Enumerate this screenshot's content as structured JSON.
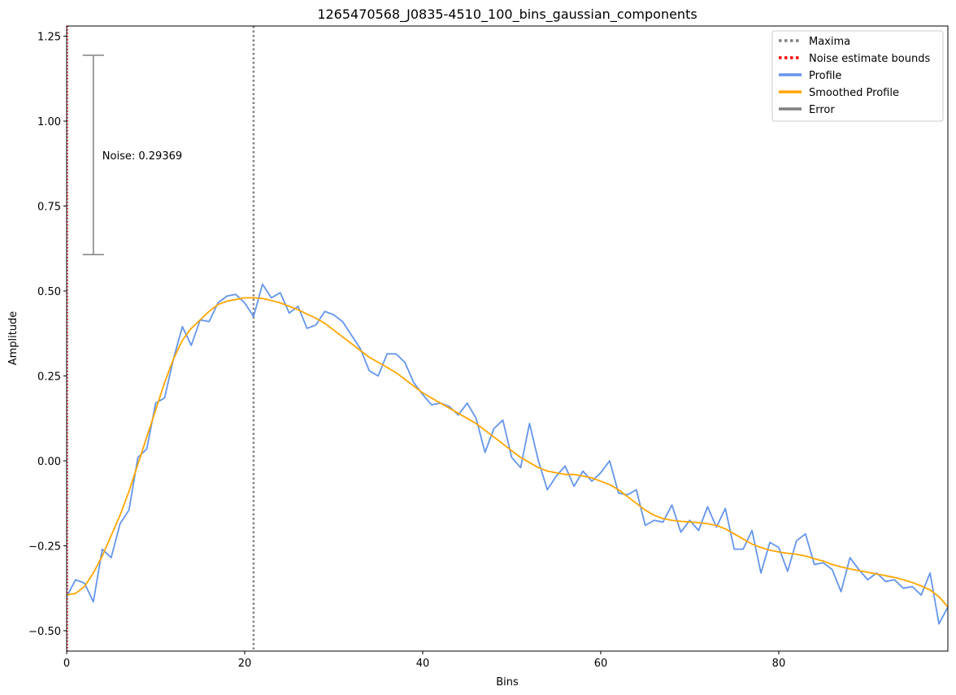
{
  "chart_data": {
    "type": "line",
    "title": "1265470568_J0835-4510_100_bins_gaussian_components",
    "xlabel": "Bins",
    "ylabel": "Amplitude",
    "xlim": [
      0,
      99
    ],
    "ylim": [
      -0.56,
      1.28
    ],
    "xticks": [
      0,
      20,
      40,
      60,
      80
    ],
    "yticks": [
      -0.5,
      -0.25,
      0.0,
      0.25,
      0.5,
      0.75,
      1.0,
      1.25
    ],
    "xtick_labels": [
      "0",
      "20",
      "40",
      "60",
      "80"
    ],
    "ytick_labels": [
      "−0.50",
      "−0.25",
      "0.00",
      "0.25",
      "0.50",
      "0.75",
      "1.00",
      "1.25"
    ],
    "grid": false,
    "legend_position": "top-right",
    "colors": {
      "maxima": "#808080",
      "noise_bounds": "#ff0000",
      "profile": "#6495ed",
      "smoothed": "#ffa500",
      "error": "#808080"
    },
    "legend": [
      {
        "label": "Maxima",
        "style": "dotted",
        "color": "#808080"
      },
      {
        "label": "Noise estimate bounds",
        "style": "dotted",
        "color": "#ff0000"
      },
      {
        "label": "Profile",
        "style": "solid",
        "color": "#6495ed"
      },
      {
        "label": "Smoothed Profile",
        "style": "solid",
        "color": "#ffa500"
      },
      {
        "label": "Error",
        "style": "solid",
        "color": "#808080"
      }
    ],
    "maxima_x": [
      21
    ],
    "noise_bounds_x": [
      0
    ],
    "error_bar": {
      "x": 3,
      "y_low": 0.607,
      "y_high": 1.194
    },
    "noise_annotation": {
      "text": "Noise: 0.29369",
      "x": 4,
      "y": 0.9
    },
    "series": [
      {
        "name": "Profile",
        "x": [
          0,
          1,
          2,
          3,
          4,
          5,
          6,
          7,
          8,
          9,
          10,
          11,
          12,
          13,
          14,
          15,
          16,
          17,
          18,
          19,
          20,
          21,
          22,
          23,
          24,
          25,
          26,
          27,
          28,
          29,
          30,
          31,
          32,
          33,
          34,
          35,
          36,
          37,
          38,
          39,
          40,
          41,
          42,
          43,
          44,
          45,
          46,
          47,
          48,
          49,
          50,
          51,
          52,
          53,
          54,
          55,
          56,
          57,
          58,
          59,
          60,
          61,
          62,
          63,
          64,
          65,
          66,
          67,
          68,
          69,
          70,
          71,
          72,
          73,
          74,
          75,
          76,
          77,
          78,
          79,
          80,
          81,
          82,
          83,
          84,
          85,
          86,
          87,
          88,
          89,
          90,
          91,
          92,
          93,
          94,
          95,
          96,
          97,
          98,
          99
        ],
        "values": [
          -0.4,
          -0.35,
          -0.36,
          -0.415,
          -0.26,
          -0.285,
          -0.185,
          -0.145,
          0.01,
          0.035,
          0.17,
          0.185,
          0.3,
          0.395,
          0.34,
          0.415,
          0.41,
          0.465,
          0.485,
          0.49,
          0.465,
          0.425,
          0.52,
          0.48,
          0.495,
          0.435,
          0.455,
          0.39,
          0.4,
          0.44,
          0.43,
          0.41,
          0.37,
          0.33,
          0.265,
          0.25,
          0.315,
          0.315,
          0.29,
          0.23,
          0.195,
          0.165,
          0.17,
          0.16,
          0.135,
          0.17,
          0.125,
          0.025,
          0.095,
          0.12,
          0.01,
          -0.02,
          0.11,
          0.0,
          -0.085,
          -0.045,
          -0.015,
          -0.075,
          -0.03,
          -0.06,
          -0.035,
          0.0,
          -0.095,
          -0.1,
          -0.085,
          -0.19,
          -0.175,
          -0.18,
          -0.13,
          -0.21,
          -0.175,
          -0.205,
          -0.135,
          -0.195,
          -0.14,
          -0.26,
          -0.26,
          -0.205,
          -0.33,
          -0.24,
          -0.255,
          -0.325,
          -0.235,
          -0.215,
          -0.305,
          -0.3,
          -0.32,
          -0.385,
          -0.285,
          -0.32,
          -0.35,
          -0.33,
          -0.355,
          -0.35,
          -0.375,
          -0.37,
          -0.395,
          -0.33,
          -0.48,
          -0.43
        ]
      },
      {
        "name": "Smoothed Profile",
        "x": [
          0,
          1,
          2,
          3,
          4,
          5,
          6,
          7,
          8,
          9,
          10,
          11,
          12,
          13,
          14,
          15,
          16,
          17,
          18,
          19,
          20,
          21,
          22,
          23,
          24,
          25,
          26,
          27,
          28,
          29,
          30,
          31,
          32,
          33,
          34,
          35,
          36,
          37,
          38,
          39,
          40,
          41,
          42,
          43,
          44,
          45,
          46,
          47,
          48,
          49,
          50,
          51,
          52,
          53,
          54,
          55,
          56,
          57,
          58,
          59,
          60,
          61,
          62,
          63,
          64,
          65,
          66,
          67,
          68,
          69,
          70,
          71,
          72,
          73,
          74,
          75,
          76,
          77,
          78,
          79,
          80,
          81,
          82,
          83,
          84,
          85,
          86,
          87,
          88,
          89,
          90,
          91,
          92,
          93,
          94,
          95,
          96,
          97,
          98,
          99
        ],
        "values": [
          -0.395,
          -0.39,
          -0.37,
          -0.33,
          -0.28,
          -0.22,
          -0.16,
          -0.09,
          -0.01,
          0.07,
          0.15,
          0.23,
          0.3,
          0.355,
          0.39,
          0.415,
          0.44,
          0.46,
          0.47,
          0.475,
          0.48,
          0.48,
          0.478,
          0.472,
          0.465,
          0.455,
          0.445,
          0.432,
          0.42,
          0.405,
          0.385,
          0.365,
          0.345,
          0.325,
          0.305,
          0.29,
          0.275,
          0.26,
          0.24,
          0.22,
          0.2,
          0.185,
          0.17,
          0.155,
          0.14,
          0.125,
          0.11,
          0.09,
          0.07,
          0.05,
          0.03,
          0.01,
          -0.005,
          -0.02,
          -0.03,
          -0.035,
          -0.04,
          -0.04,
          -0.045,
          -0.05,
          -0.06,
          -0.07,
          -0.085,
          -0.105,
          -0.125,
          -0.145,
          -0.16,
          -0.17,
          -0.175,
          -0.178,
          -0.18,
          -0.182,
          -0.185,
          -0.19,
          -0.2,
          -0.215,
          -0.23,
          -0.245,
          -0.255,
          -0.263,
          -0.268,
          -0.272,
          -0.275,
          -0.28,
          -0.288,
          -0.295,
          -0.305,
          -0.312,
          -0.318,
          -0.323,
          -0.328,
          -0.333,
          -0.338,
          -0.343,
          -0.35,
          -0.358,
          -0.368,
          -0.38,
          -0.4,
          -0.43
        ]
      }
    ]
  }
}
